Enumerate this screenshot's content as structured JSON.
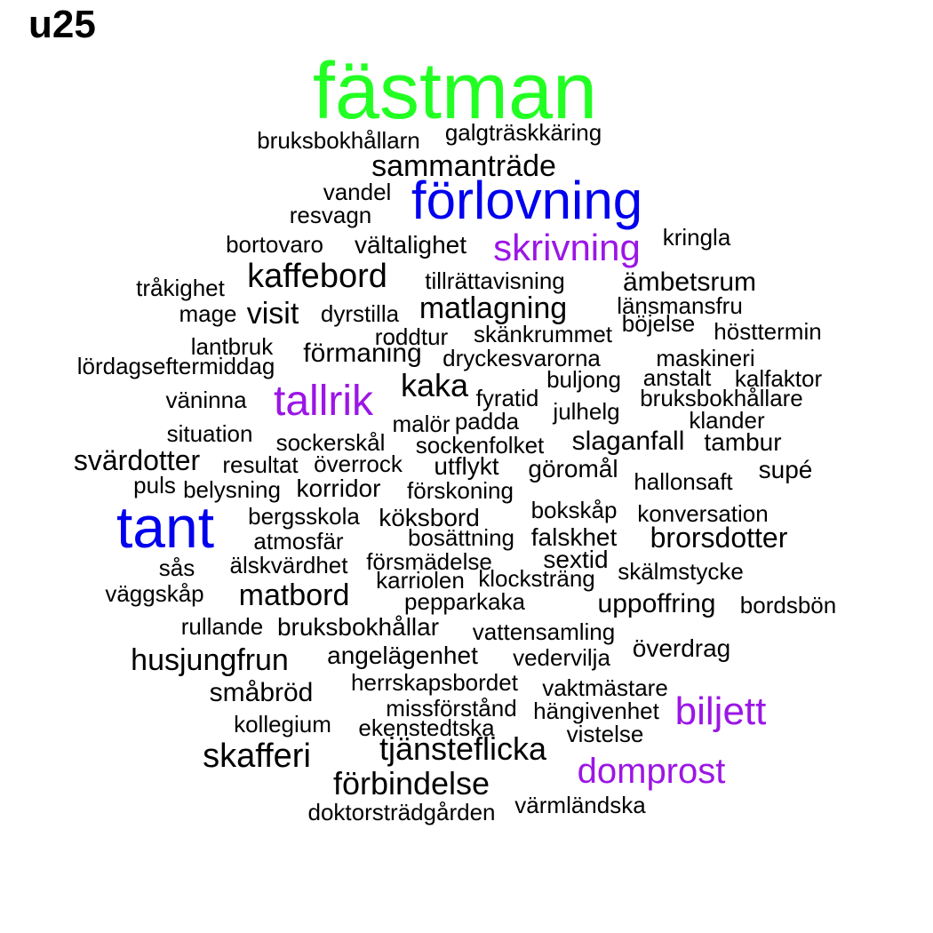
{
  "title": "u25",
  "colors": {
    "green": "#22ff22",
    "blue": "#0000ee",
    "purple": "#9b16e5",
    "black": "#000000"
  },
  "words": [
    {
      "text": "fästman",
      "color": "green"
    },
    {
      "text": "bruksbokhållarn",
      "color": "black"
    },
    {
      "text": "galgträskkäring",
      "color": "black"
    },
    {
      "text": "sammanträde",
      "color": "black"
    },
    {
      "text": "vandel",
      "color": "black"
    },
    {
      "text": "förlovning",
      "color": "blue"
    },
    {
      "text": "resvagn",
      "color": "black"
    },
    {
      "text": "kringla",
      "color": "black"
    },
    {
      "text": "bortovaro",
      "color": "black"
    },
    {
      "text": "vältalighet",
      "color": "black"
    },
    {
      "text": "skrivning",
      "color": "purple"
    },
    {
      "text": "kaffebord",
      "color": "black"
    },
    {
      "text": "tillrättavisning",
      "color": "black"
    },
    {
      "text": "ämbetsrum",
      "color": "black"
    },
    {
      "text": "tråkighet",
      "color": "black"
    },
    {
      "text": "länsmansfru",
      "color": "black"
    },
    {
      "text": "mage",
      "color": "black"
    },
    {
      "text": "visit",
      "color": "black"
    },
    {
      "text": "dyrstilla",
      "color": "black"
    },
    {
      "text": "matlagning",
      "color": "black"
    },
    {
      "text": "böjelse",
      "color": "black"
    },
    {
      "text": "hösttermin",
      "color": "black"
    },
    {
      "text": "roddtur",
      "color": "black"
    },
    {
      "text": "skänkrummet",
      "color": "black"
    },
    {
      "text": "lantbruk",
      "color": "black"
    },
    {
      "text": "förmaning",
      "color": "black"
    },
    {
      "text": "dryckesvarorna",
      "color": "black"
    },
    {
      "text": "maskineri",
      "color": "black"
    },
    {
      "text": "lördagseftermiddag",
      "color": "black"
    },
    {
      "text": "anstalt",
      "color": "black"
    },
    {
      "text": "kalfaktor",
      "color": "black"
    },
    {
      "text": "kaka",
      "color": "black"
    },
    {
      "text": "buljong",
      "color": "black"
    },
    {
      "text": "väninna",
      "color": "black"
    },
    {
      "text": "tallrik",
      "color": "purple"
    },
    {
      "text": "fyratid",
      "color": "black"
    },
    {
      "text": "bruksbokhållare",
      "color": "black"
    },
    {
      "text": "julhelg",
      "color": "black"
    },
    {
      "text": "malör",
      "color": "black"
    },
    {
      "text": "padda",
      "color": "black"
    },
    {
      "text": "klander",
      "color": "black"
    },
    {
      "text": "situation",
      "color": "black"
    },
    {
      "text": "sockerskål",
      "color": "black"
    },
    {
      "text": "sockenfolket",
      "color": "black"
    },
    {
      "text": "slaganfall",
      "color": "black"
    },
    {
      "text": "tambur",
      "color": "black"
    },
    {
      "text": "svärdotter",
      "color": "black"
    },
    {
      "text": "resultat",
      "color": "black"
    },
    {
      "text": "överrock",
      "color": "black"
    },
    {
      "text": "utflykt",
      "color": "black"
    },
    {
      "text": "göromål",
      "color": "black"
    },
    {
      "text": "supé",
      "color": "black"
    },
    {
      "text": "puls",
      "color": "black"
    },
    {
      "text": "belysning",
      "color": "black"
    },
    {
      "text": "korridor",
      "color": "black"
    },
    {
      "text": "förskoning",
      "color": "black"
    },
    {
      "text": "hallonsaft",
      "color": "black"
    },
    {
      "text": "tant",
      "color": "blue"
    },
    {
      "text": "bokskåp",
      "color": "black"
    },
    {
      "text": "bergsskola",
      "color": "black"
    },
    {
      "text": "köksbord",
      "color": "black"
    },
    {
      "text": "konversation",
      "color": "black"
    },
    {
      "text": "atmosfär",
      "color": "black"
    },
    {
      "text": "bosättning",
      "color": "black"
    },
    {
      "text": "falskhet",
      "color": "black"
    },
    {
      "text": "brorsdotter",
      "color": "black"
    },
    {
      "text": "försmädelse",
      "color": "black"
    },
    {
      "text": "sextid",
      "color": "black"
    },
    {
      "text": "sås",
      "color": "black"
    },
    {
      "text": "älskvärdhet",
      "color": "black"
    },
    {
      "text": "skälmstycke",
      "color": "black"
    },
    {
      "text": "karriolen",
      "color": "black"
    },
    {
      "text": "klocksträng",
      "color": "black"
    },
    {
      "text": "väggskåp",
      "color": "black"
    },
    {
      "text": "matbord",
      "color": "black"
    },
    {
      "text": "pepparkaka",
      "color": "black"
    },
    {
      "text": "uppoffring",
      "color": "black"
    },
    {
      "text": "bordsbön",
      "color": "black"
    },
    {
      "text": "rullande",
      "color": "black"
    },
    {
      "text": "bruksbokhållar",
      "color": "black"
    },
    {
      "text": "vattensamling",
      "color": "black"
    },
    {
      "text": "överdrag",
      "color": "black"
    },
    {
      "text": "husjungfrun",
      "color": "black"
    },
    {
      "text": "angelägenhet",
      "color": "black"
    },
    {
      "text": "vedervilja",
      "color": "black"
    },
    {
      "text": "herrskapsbordet",
      "color": "black"
    },
    {
      "text": "vaktmästare",
      "color": "black"
    },
    {
      "text": "småbröd",
      "color": "black"
    },
    {
      "text": "missförstånd",
      "color": "black"
    },
    {
      "text": "hängivenhet",
      "color": "black"
    },
    {
      "text": "biljett",
      "color": "purple"
    },
    {
      "text": "kollegium",
      "color": "black"
    },
    {
      "text": "ekenstedtska",
      "color": "black"
    },
    {
      "text": "vistelse",
      "color": "black"
    },
    {
      "text": "tjänsteflicka",
      "color": "black"
    },
    {
      "text": "skafferi",
      "color": "black"
    },
    {
      "text": "domprost",
      "color": "purple"
    },
    {
      "text": "förbindelse",
      "color": "black"
    },
    {
      "text": "värmländska",
      "color": "black"
    },
    {
      "text": "doktorsträdgården",
      "color": "black"
    }
  ]
}
